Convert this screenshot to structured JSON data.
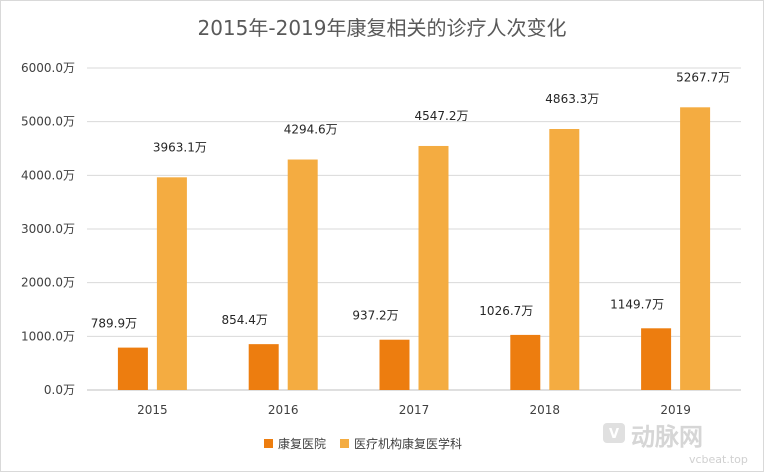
{
  "chart_data": {
    "type": "bar",
    "title": "2015年-2019年康复相关的诊疗人次变化",
    "categories": [
      "2015",
      "2016",
      "2017",
      "2018",
      "2019"
    ],
    "series": [
      {
        "name": "康复医院",
        "color": "#ED7D0F",
        "values": [
          789.9,
          854.4,
          937.2,
          1026.7,
          1149.7
        ],
        "labels": [
          "789.9万",
          "854.4万",
          "937.2万",
          "1026.7万",
          "1149.7万"
        ]
      },
      {
        "name": "医疗机构康复医学科",
        "color": "#F4AC41",
        "values": [
          3963.1,
          4294.6,
          4547.2,
          4863.3,
          5267.7
        ],
        "labels": [
          "3963.1万",
          "4294.6万",
          "4547.2万",
          "4863.3万",
          "5267.7万"
        ]
      }
    ],
    "ylim": [
      0,
      6000
    ],
    "yticks": [
      0,
      1000,
      2000,
      3000,
      4000,
      5000,
      6000
    ],
    "ytick_labels": [
      "0.0万",
      "1000.0万",
      "2000.0万",
      "3000.0万",
      "4000.0万",
      "5000.0万",
      "6000.0万"
    ],
    "grid": true,
    "legend_position": "bottom"
  },
  "watermark": {
    "logo_text": "动脉网",
    "url_text": "vcbeat.top"
  }
}
